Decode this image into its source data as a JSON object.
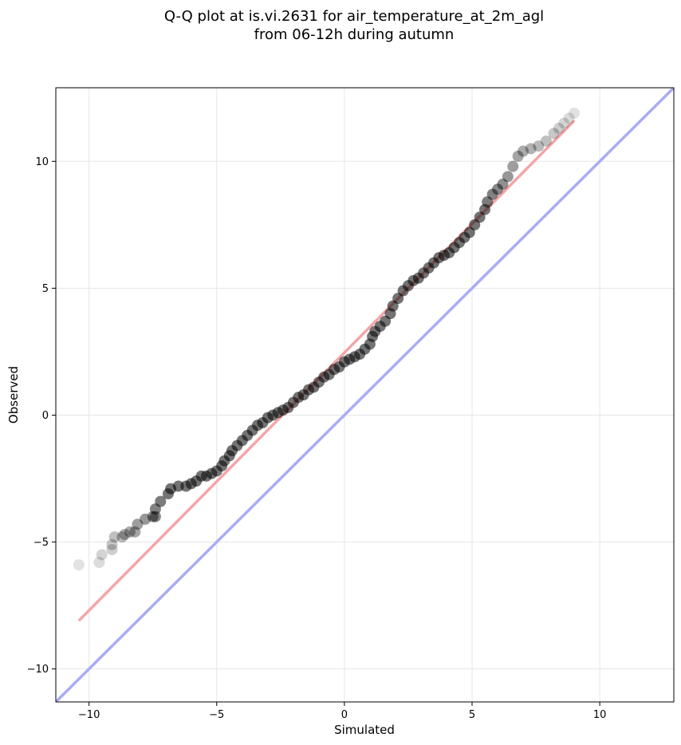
{
  "chart_data": {
    "type": "scatter",
    "title": "Q-Q plot at is.vi.2631 for air_temperature_at_2m_agl",
    "subtitle": "from 06-12h during autumn",
    "xlabel": "Simulated",
    "ylabel": "Observed",
    "xlim": [
      -11.3,
      12.9
    ],
    "ylim": [
      -11.3,
      12.9
    ],
    "xticks": [
      -10,
      -5,
      0,
      5,
      10
    ],
    "yticks": [
      -10,
      -5,
      0,
      5,
      10
    ],
    "xtick_labels": [
      "−10",
      "−5",
      "0",
      "5",
      "10"
    ],
    "ytick_labels": [
      "−10",
      "−5",
      "0",
      "5",
      "10"
    ],
    "grid": true,
    "legend": "none",
    "colors": {
      "points": "#000000",
      "fit_line": "#f4a6a6",
      "identity_line": "#a9acf4"
    },
    "fit_line": {
      "x": [
        -10.4,
        9.0
      ],
      "y": [
        -8.1,
        11.6
      ]
    },
    "identity_line": {
      "x": [
        -11.3,
        12.9
      ],
      "y": [
        -11.3,
        12.9
      ]
    },
    "series": [
      {
        "values": [
          {
            "x": -10.4,
            "y": -5.9
          },
          {
            "x": -9.6,
            "y": -5.8
          },
          {
            "x": -9.5,
            "y": -5.5
          },
          {
            "x": -9.1,
            "y": -5.3
          },
          {
            "x": -9.1,
            "y": -5.1
          },
          {
            "x": -9.0,
            "y": -4.8
          },
          {
            "x": -8.7,
            "y": -4.8
          },
          {
            "x": -8.6,
            "y": -4.7
          },
          {
            "x": -8.4,
            "y": -4.6
          },
          {
            "x": -8.2,
            "y": -4.6
          },
          {
            "x": -8.1,
            "y": -4.3
          },
          {
            "x": -7.8,
            "y": -4.1
          },
          {
            "x": -7.5,
            "y": -4.0
          },
          {
            "x": -7.4,
            "y": -4.0
          },
          {
            "x": -7.4,
            "y": -3.7
          },
          {
            "x": -7.2,
            "y": -3.4
          },
          {
            "x": -6.9,
            "y": -3.1
          },
          {
            "x": -6.8,
            "y": -2.9
          },
          {
            "x": -6.5,
            "y": -2.8
          },
          {
            "x": -6.2,
            "y": -2.8
          },
          {
            "x": -6.0,
            "y": -2.7
          },
          {
            "x": -5.8,
            "y": -2.6
          },
          {
            "x": -5.6,
            "y": -2.4
          },
          {
            "x": -5.4,
            "y": -2.4
          },
          {
            "x": -5.2,
            "y": -2.3
          },
          {
            "x": -5.0,
            "y": -2.2
          },
          {
            "x": -4.8,
            "y": -2.0
          },
          {
            "x": -4.7,
            "y": -1.8
          },
          {
            "x": -4.5,
            "y": -1.6
          },
          {
            "x": -4.4,
            "y": -1.4
          },
          {
            "x": -4.2,
            "y": -1.2
          },
          {
            "x": -4.0,
            "y": -1.0
          },
          {
            "x": -3.8,
            "y": -0.8
          },
          {
            "x": -3.6,
            "y": -0.6
          },
          {
            "x": -3.4,
            "y": -0.4
          },
          {
            "x": -3.2,
            "y": -0.3
          },
          {
            "x": -3.0,
            "y": -0.1
          },
          {
            "x": -2.8,
            "y": 0.0
          },
          {
            "x": -2.6,
            "y": 0.1
          },
          {
            "x": -2.4,
            "y": 0.2
          },
          {
            "x": -2.2,
            "y": 0.3
          },
          {
            "x": -2.0,
            "y": 0.5
          },
          {
            "x": -1.8,
            "y": 0.7
          },
          {
            "x": -1.6,
            "y": 0.8
          },
          {
            "x": -1.4,
            "y": 1.0
          },
          {
            "x": -1.2,
            "y": 1.1
          },
          {
            "x": -1.0,
            "y": 1.3
          },
          {
            "x": -0.8,
            "y": 1.5
          },
          {
            "x": -0.6,
            "y": 1.6
          },
          {
            "x": -0.4,
            "y": 1.8
          },
          {
            "x": -0.2,
            "y": 1.9
          },
          {
            "x": 0.0,
            "y": 2.1
          },
          {
            "x": 0.2,
            "y": 2.2
          },
          {
            "x": 0.4,
            "y": 2.3
          },
          {
            "x": 0.6,
            "y": 2.4
          },
          {
            "x": 0.8,
            "y": 2.6
          },
          {
            "x": 1.0,
            "y": 2.8
          },
          {
            "x": 1.1,
            "y": 3.1
          },
          {
            "x": 1.2,
            "y": 3.3
          },
          {
            "x": 1.4,
            "y": 3.5
          },
          {
            "x": 1.6,
            "y": 3.7
          },
          {
            "x": 1.8,
            "y": 4.0
          },
          {
            "x": 1.9,
            "y": 4.3
          },
          {
            "x": 2.1,
            "y": 4.6
          },
          {
            "x": 2.3,
            "y": 4.9
          },
          {
            "x": 2.5,
            "y": 5.1
          },
          {
            "x": 2.7,
            "y": 5.3
          },
          {
            "x": 2.9,
            "y": 5.4
          },
          {
            "x": 3.1,
            "y": 5.6
          },
          {
            "x": 3.3,
            "y": 5.8
          },
          {
            "x": 3.5,
            "y": 6.0
          },
          {
            "x": 3.7,
            "y": 6.2
          },
          {
            "x": 3.9,
            "y": 6.3
          },
          {
            "x": 4.1,
            "y": 6.4
          },
          {
            "x": 4.3,
            "y": 6.6
          },
          {
            "x": 4.5,
            "y": 6.8
          },
          {
            "x": 4.7,
            "y": 7.0
          },
          {
            "x": 4.9,
            "y": 7.2
          },
          {
            "x": 5.1,
            "y": 7.5
          },
          {
            "x": 5.3,
            "y": 7.8
          },
          {
            "x": 5.5,
            "y": 8.1
          },
          {
            "x": 5.6,
            "y": 8.4
          },
          {
            "x": 5.8,
            "y": 8.7
          },
          {
            "x": 6.0,
            "y": 8.9
          },
          {
            "x": 6.2,
            "y": 9.1
          },
          {
            "x": 6.4,
            "y": 9.4
          },
          {
            "x": 6.6,
            "y": 9.8
          },
          {
            "x": 6.8,
            "y": 10.2
          },
          {
            "x": 7.0,
            "y": 10.4
          },
          {
            "x": 7.3,
            "y": 10.5
          },
          {
            "x": 7.6,
            "y": 10.6
          },
          {
            "x": 7.9,
            "y": 10.8
          },
          {
            "x": 8.2,
            "y": 11.1
          },
          {
            "x": 8.4,
            "y": 11.3
          },
          {
            "x": 8.6,
            "y": 11.5
          },
          {
            "x": 8.8,
            "y": 11.7
          },
          {
            "x": 9.0,
            "y": 11.9
          }
        ]
      }
    ]
  }
}
